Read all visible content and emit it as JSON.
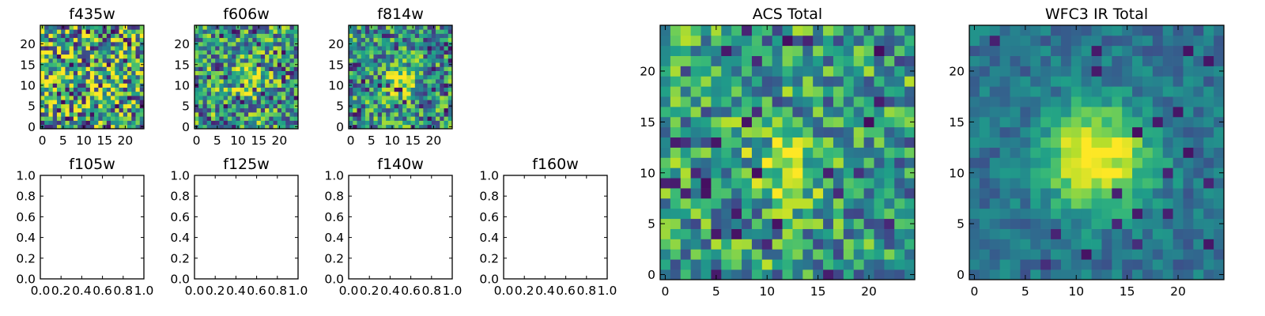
{
  "chart_data": [
    {
      "id": "f435w",
      "type": "heatmap",
      "title": "f435w",
      "grid_size": 25,
      "xlim": [
        -0.5,
        24.5
      ],
      "ylim": [
        -0.5,
        24.5
      ],
      "xticks": [
        0,
        5,
        10,
        15,
        20
      ],
      "yticks": [
        0,
        5,
        10,
        15,
        20
      ],
      "values": [],
      "colormap": "viridis"
    },
    {
      "id": "f606w",
      "type": "heatmap",
      "title": "f606w",
      "grid_size": 25,
      "xlim": [
        -0.5,
        24.5
      ],
      "ylim": [
        -0.5,
        24.5
      ],
      "xticks": [
        0,
        5,
        10,
        15,
        20
      ],
      "yticks": [
        0,
        5,
        10,
        15,
        20
      ],
      "values": [],
      "colormap": "viridis"
    },
    {
      "id": "f814w",
      "type": "heatmap",
      "title": "f814w",
      "grid_size": 25,
      "xlim": [
        -0.5,
        24.5
      ],
      "ylim": [
        -0.5,
        24.5
      ],
      "xticks": [
        0,
        5,
        10,
        15,
        20
      ],
      "yticks": [
        0,
        5,
        10,
        15,
        20
      ],
      "values": [],
      "colormap": "viridis"
    },
    {
      "id": "f105w",
      "type": "empty",
      "title": "f105w",
      "xlim": [
        0,
        1
      ],
      "ylim": [
        0,
        1
      ],
      "xticks": [
        "0.0",
        "0.2",
        "0.4",
        "0.6",
        "0.8",
        "1.0"
      ],
      "yticks": [
        "0.0",
        "0.2",
        "0.4",
        "0.6",
        "0.8",
        "1.0"
      ]
    },
    {
      "id": "f125w",
      "type": "empty",
      "title": "f125w",
      "xlim": [
        0,
        1
      ],
      "ylim": [
        0,
        1
      ],
      "xticks": [
        "0.0",
        "0.2",
        "0.4",
        "0.6",
        "0.8",
        "1.0"
      ],
      "yticks": [
        "0.0",
        "0.2",
        "0.4",
        "0.6",
        "0.8",
        "1.0"
      ]
    },
    {
      "id": "f140w",
      "type": "empty",
      "title": "f140w",
      "xlim": [
        0,
        1
      ],
      "ylim": [
        0,
        1
      ],
      "xticks": [
        "0.0",
        "0.2",
        "0.4",
        "0.6",
        "0.8",
        "1.0"
      ],
      "yticks": [
        "0.0",
        "0.2",
        "0.4",
        "0.6",
        "0.8",
        "1.0"
      ]
    },
    {
      "id": "f160w",
      "type": "empty",
      "title": "f160w",
      "xlim": [
        0,
        1
      ],
      "ylim": [
        0,
        1
      ],
      "xticks": [
        "0.0",
        "0.2",
        "0.4",
        "0.6",
        "0.8",
        "1.0"
      ],
      "yticks": [
        "0.0",
        "0.2",
        "0.4",
        "0.6",
        "0.8",
        "1.0"
      ]
    },
    {
      "id": "acs-total",
      "type": "heatmap",
      "title": "ACS Total",
      "grid_size": 25,
      "xlim": [
        -0.5,
        24.5
      ],
      "ylim": [
        -0.5,
        24.5
      ],
      "xticks": [
        0,
        5,
        10,
        15,
        20
      ],
      "yticks": [
        0,
        5,
        10,
        15,
        20
      ],
      "values": [],
      "colormap": "viridis"
    },
    {
      "id": "wfc3-ir-total",
      "type": "heatmap",
      "title": "WFC3 IR Total",
      "grid_size": 25,
      "xlim": [
        -0.5,
        24.5
      ],
      "ylim": [
        -0.5,
        24.5
      ],
      "xticks": [
        0,
        5,
        10,
        15,
        20
      ],
      "yticks": [
        0,
        5,
        10,
        15,
        20
      ],
      "values": [],
      "colormap": "viridis"
    }
  ]
}
